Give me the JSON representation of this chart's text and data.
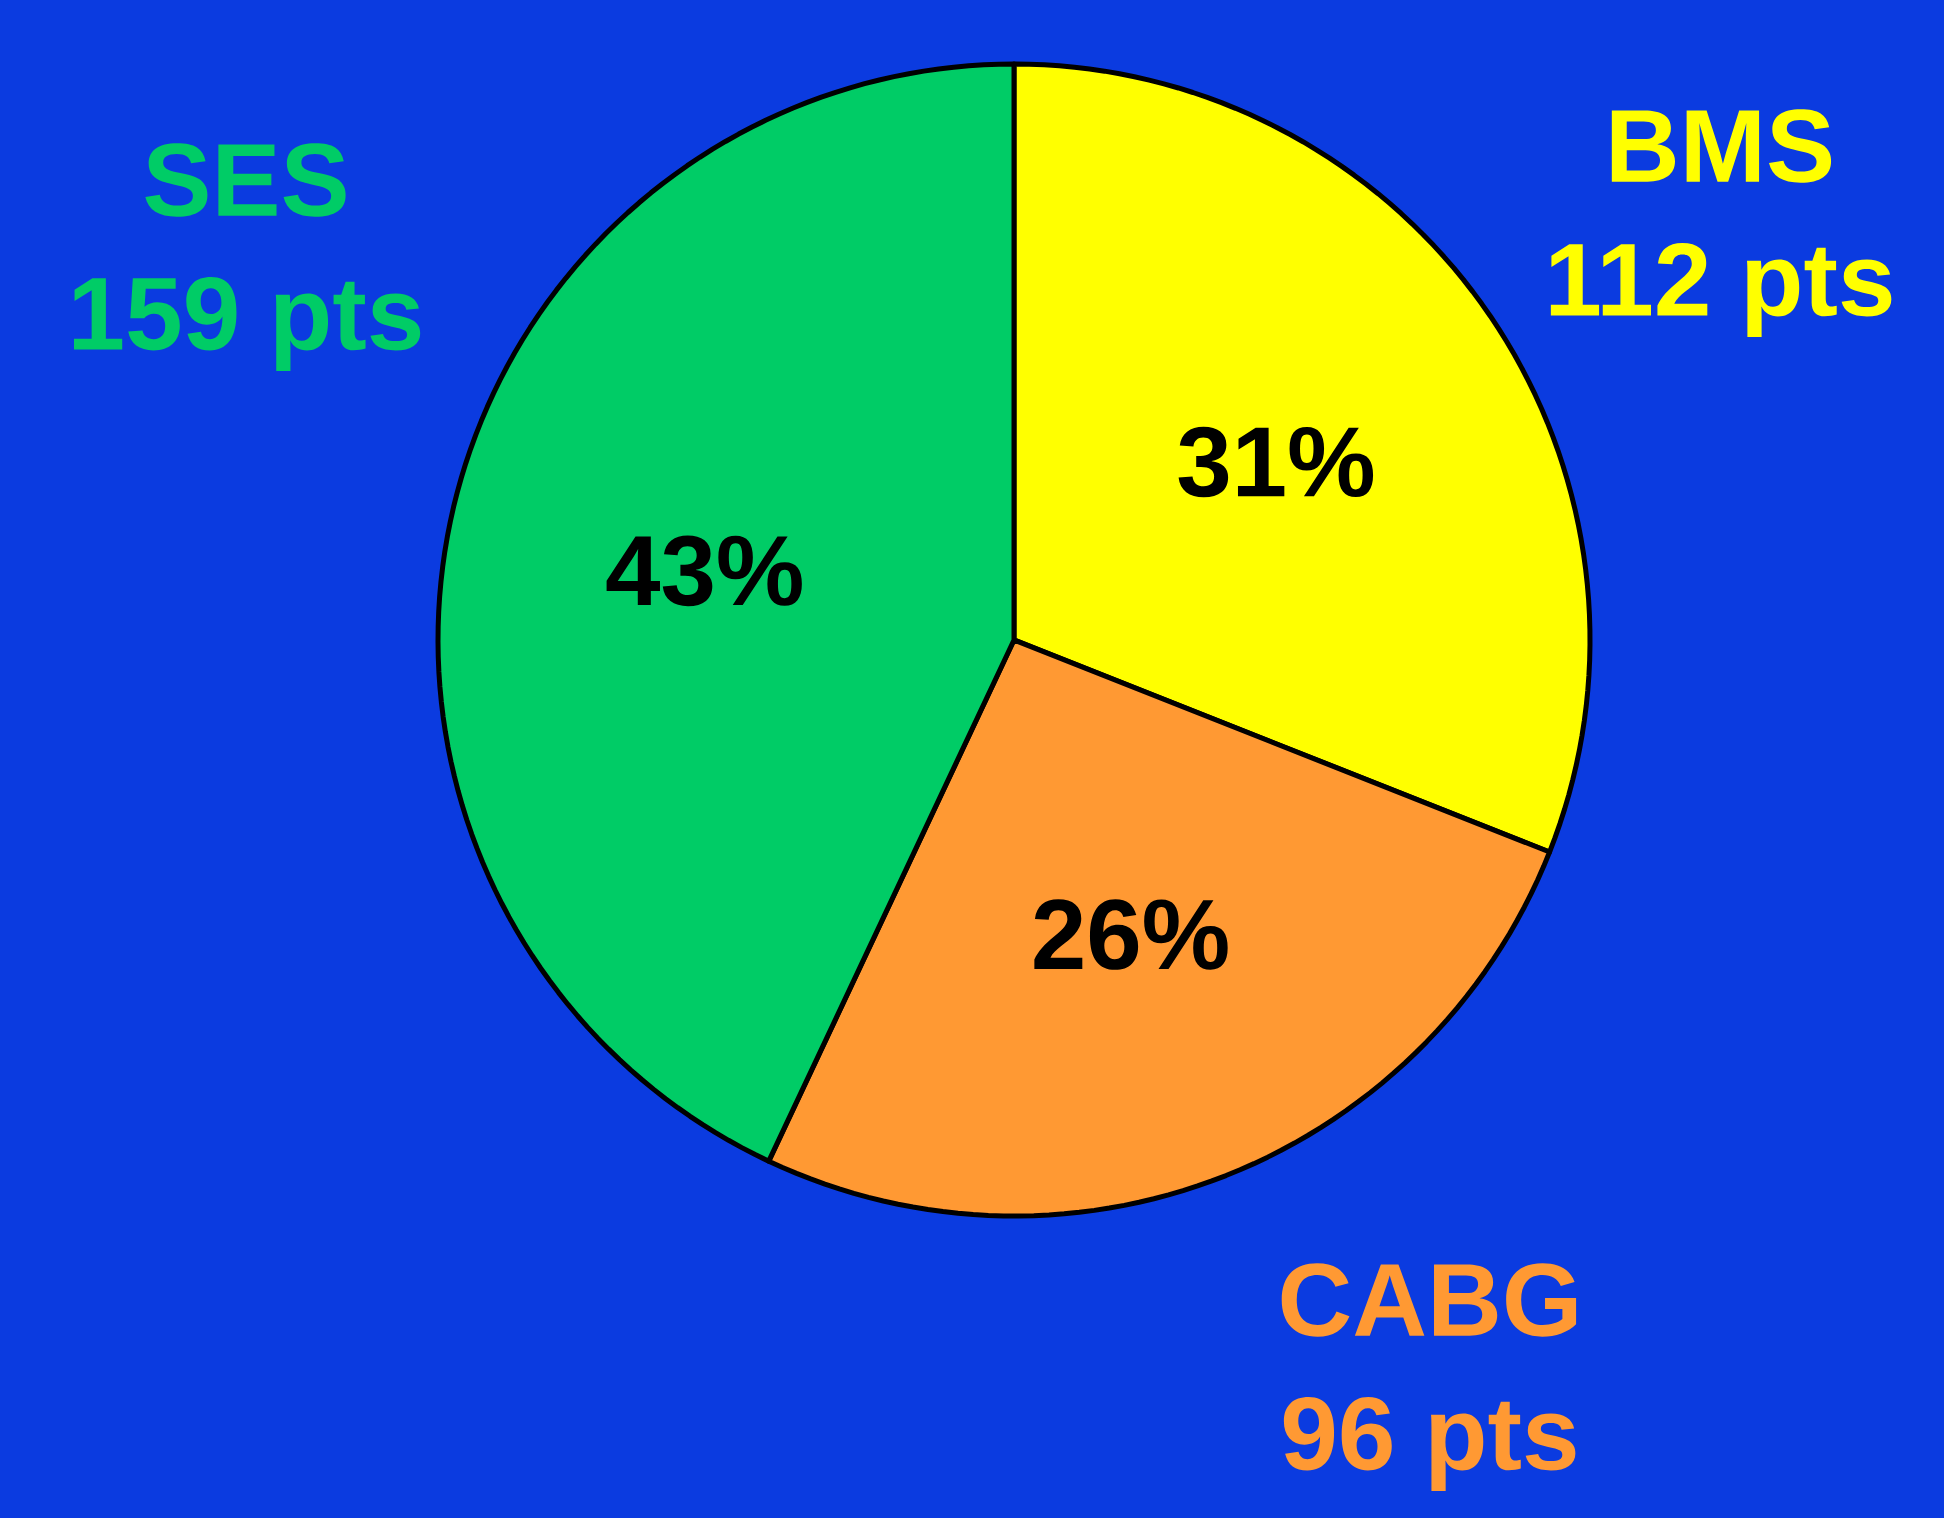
{
  "chart_data": {
    "type": "pie",
    "categories": [
      "BMS",
      "CABG",
      "SES"
    ],
    "values": [
      31,
      26,
      43
    ],
    "value_labels": [
      "31%",
      "26%",
      "43%"
    ],
    "colors": [
      "#ffff00",
      "#ff9933",
      "#00cc66"
    ],
    "annotations": [
      "112 pts",
      "96 pts",
      "159 pts"
    ]
  }
}
